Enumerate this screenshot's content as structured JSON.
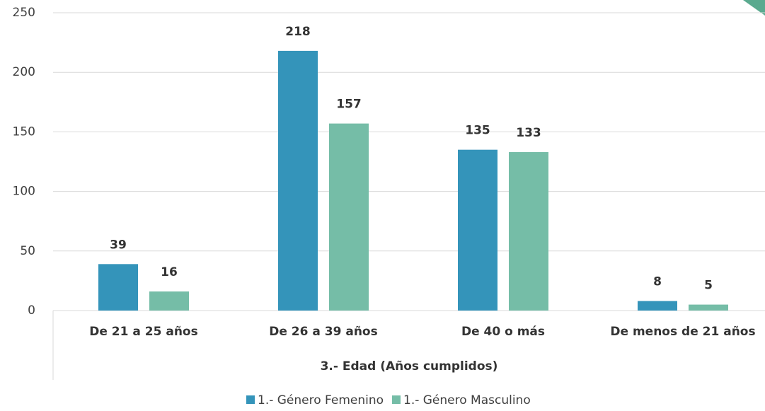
{
  "chart_data": {
    "type": "bar",
    "x_label": "3.- Edad (Años cumplidos)",
    "categories": [
      "De 21 a 25 años",
      "De 26 a 39 años",
      "De 40 o más",
      "De menos de 21 años"
    ],
    "series": [
      {
        "name": "1.- Género Femenino",
        "color": "#3494ba",
        "values": [
          39,
          218,
          135,
          8
        ]
      },
      {
        "name": "1.- Género Masculino",
        "color": "#75bda7",
        "values": [
          16,
          157,
          133,
          5
        ]
      }
    ],
    "ylim": [
      0,
      250
    ],
    "yticks": [
      0,
      50,
      100,
      150,
      200,
      250
    ],
    "grid": true,
    "legend": "bottom"
  }
}
